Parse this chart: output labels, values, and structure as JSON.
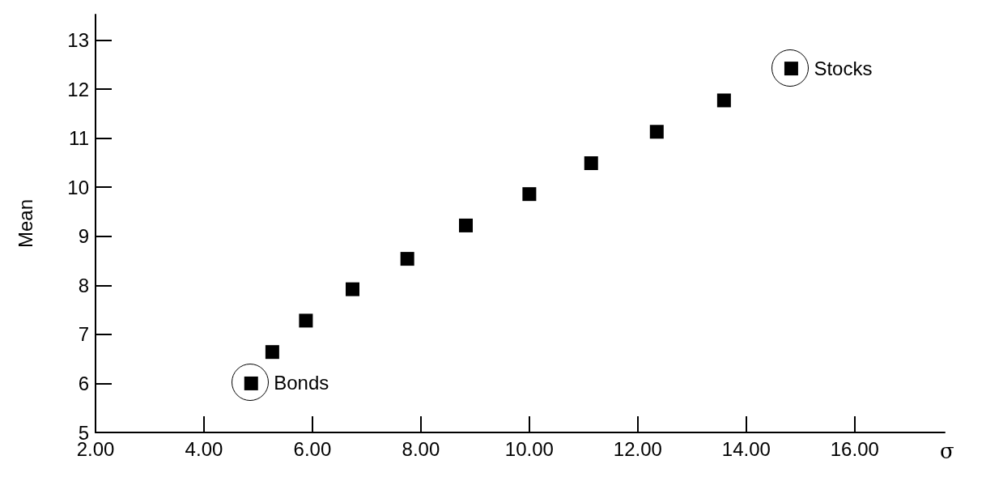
{
  "chart_data": {
    "type": "scatter",
    "xlabel": "σ",
    "ylabel": "Mean",
    "x": [
      4.87,
      5.26,
      5.88,
      6.74,
      7.75,
      8.83,
      10.0,
      11.14,
      12.35,
      13.59,
      14.83
    ],
    "values": [
      6.0,
      6.64,
      7.28,
      7.92,
      8.54,
      9.22,
      9.86,
      10.49,
      11.13,
      11.77,
      12.42
    ],
    "color": "#000000",
    "marker": "square",
    "xlim": [
      2,
      17.66
    ],
    "ylim": [
      5,
      13.52
    ],
    "xticks": [
      {
        "value": 2,
        "label": "2.00"
      },
      {
        "value": 4,
        "label": "4.00"
      },
      {
        "value": 6,
        "label": "6.00"
      },
      {
        "value": 8,
        "label": "8.00"
      },
      {
        "value": 10,
        "label": "10.00"
      },
      {
        "value": 12,
        "label": "12.00"
      },
      {
        "value": 14,
        "label": "14.00"
      },
      {
        "value": 16,
        "label": "16.00"
      }
    ],
    "yticks": [
      5,
      6,
      7,
      8,
      9,
      10,
      11,
      12,
      13
    ],
    "grid": false,
    "annotations": [
      {
        "text": "Bonds",
        "x": 4.87,
        "y": 6.0
      },
      {
        "text": "Stocks",
        "x": 14.83,
        "y": 12.42
      }
    ]
  }
}
